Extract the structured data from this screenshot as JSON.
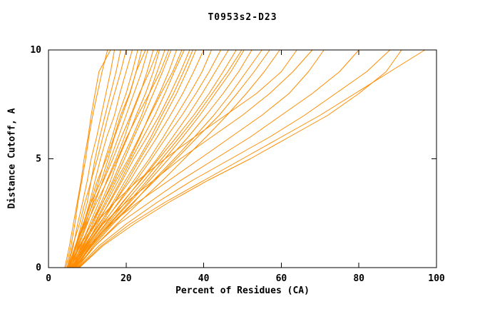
{
  "chart_data": {
    "type": "line",
    "title": "T0953s2-D23",
    "xlabel": "Percent of Residues (CA)",
    "ylabel": "Distance Cutoff, A",
    "xlim": [
      0,
      100
    ],
    "ylim": [
      0,
      10
    ],
    "xticks": [
      0,
      20,
      40,
      60,
      80,
      100
    ],
    "yticks": [
      0,
      5,
      10
    ],
    "grid": false,
    "legend": "none",
    "line_color": "#ff8c00",
    "frame_color": "#000000",
    "y_values": [
      0,
      1,
      2,
      3,
      4,
      5,
      6,
      7,
      8,
      9,
      10
    ],
    "series_x_at_y": [
      [
        4.5,
        5.8,
        6.8,
        7.6,
        8.6,
        9.6,
        10.4,
        11.4,
        12.6,
        13.8,
        15.2
      ],
      [
        5.0,
        6.4,
        7.5,
        8.8,
        10.0,
        11.0,
        12.4,
        13.6,
        14.8,
        16.0,
        17.0
      ],
      [
        5.5,
        7.0,
        8.5,
        10.0,
        11.0,
        12.0,
        13.2,
        14.6,
        16.0,
        17.4,
        18.6
      ],
      [
        4.8,
        6.2,
        8.0,
        9.4,
        11.0,
        12.6,
        14.0,
        15.4,
        17.0,
        18.6,
        20.0
      ],
      [
        5.2,
        7.0,
        9.0,
        10.6,
        12.0,
        13.4,
        15.0,
        17.0,
        18.4,
        20.0,
        21.6
      ],
      [
        6.0,
        7.6,
        9.6,
        11.4,
        13.0,
        14.6,
        16.4,
        18.0,
        20.0,
        21.6,
        23.0
      ],
      [
        5.0,
        7.2,
        9.2,
        11.0,
        13.6,
        15.4,
        17.0,
        19.0,
        21.0,
        22.6,
        24.0
      ],
      [
        5.5,
        7.8,
        10.0,
        12.0,
        14.0,
        16.0,
        18.0,
        20.0,
        22.0,
        24.0,
        25.6
      ],
      [
        6.2,
        8.4,
        10.6,
        13.0,
        15.0,
        17.4,
        19.6,
        21.4,
        23.6,
        25.4,
        27.0
      ],
      [
        5.8,
        8.0,
        11.0,
        13.6,
        16.0,
        18.0,
        20.4,
        22.6,
        25.0,
        27.0,
        28.6
      ],
      [
        6.5,
        9.0,
        11.4,
        14.0,
        16.6,
        19.0,
        21.6,
        24.0,
        26.0,
        28.0,
        30.0
      ],
      [
        5.4,
        8.2,
        11.0,
        14.0,
        17.0,
        19.6,
        22.0,
        24.6,
        27.0,
        29.4,
        31.6
      ],
      [
        6.0,
        9.0,
        12.0,
        15.0,
        18.0,
        21.0,
        23.6,
        26.0,
        28.6,
        31.0,
        33.0
      ],
      [
        6.8,
        9.6,
        12.6,
        15.6,
        18.6,
        21.4,
        24.4,
        27.4,
        30.0,
        32.4,
        35.0
      ],
      [
        5.6,
        8.8,
        12.2,
        15.8,
        19.0,
        22.0,
        25.4,
        28.6,
        31.4,
        34.0,
        36.4
      ],
      [
        6.4,
        9.8,
        13.6,
        17.0,
        20.4,
        23.6,
        27.0,
        30.0,
        33.0,
        35.6,
        38.0
      ],
      [
        5.9,
        9.2,
        13.0,
        17.0,
        21.0,
        24.4,
        28.0,
        31.4,
        34.6,
        37.4,
        40.0
      ],
      [
        6.6,
        10.0,
        14.0,
        18.0,
        22.0,
        26.0,
        29.6,
        33.0,
        36.4,
        39.6,
        42.0
      ],
      [
        6.1,
        9.6,
        13.8,
        18.2,
        22.6,
        26.6,
        30.4,
        34.4,
        38.0,
        41.4,
        44.4
      ],
      [
        7.0,
        10.6,
        14.8,
        19.2,
        23.6,
        28.0,
        32.0,
        36.0,
        39.6,
        43.0,
        46.4
      ],
      [
        6.3,
        10.2,
        14.6,
        19.0,
        23.8,
        28.4,
        33.0,
        37.4,
        41.4,
        45.0,
        48.4
      ],
      [
        7.2,
        11.0,
        15.6,
        20.6,
        25.4,
        30.0,
        34.6,
        39.0,
        43.0,
        47.0,
        50.4
      ],
      [
        6.7,
        10.8,
        15.8,
        21.0,
        26.0,
        31.0,
        36.0,
        40.6,
        45.0,
        49.0,
        52.4
      ],
      [
        7.5,
        11.6,
        16.6,
        22.0,
        27.0,
        32.4,
        37.6,
        42.6,
        47.0,
        51.0,
        55.0
      ],
      [
        6.9,
        11.2,
        16.2,
        21.8,
        27.4,
        33.0,
        38.4,
        44.0,
        48.6,
        53.0,
        57.0
      ],
      [
        7.4,
        12.0,
        17.6,
        23.4,
        29.4,
        35.0,
        40.6,
        46.0,
        51.0,
        55.6,
        59.6
      ],
      [
        5.0,
        8.0,
        12.0,
        17.0,
        23.0,
        30.0,
        37.6,
        45.6,
        53.6,
        60.0,
        64.0
      ],
      [
        6.0,
        9.6,
        14.0,
        20.0,
        27.0,
        34.0,
        42.0,
        50.0,
        57.0,
        63.0,
        68.0
      ],
      [
        6.5,
        10.4,
        16.0,
        23.0,
        31.0,
        39.0,
        47.0,
        55.0,
        62.0,
        67.0,
        71.0
      ],
      [
        7.0,
        12.0,
        18.0,
        26.0,
        34.0,
        43.0,
        52.0,
        60.0,
        68.0,
        75.0,
        80.0
      ],
      [
        7.6,
        13.0,
        20.0,
        28.0,
        37.0,
        47.0,
        57.0,
        66.0,
        74.0,
        82.0,
        88.0
      ],
      [
        8.0,
        14.0,
        22.0,
        31.0,
        41.0,
        52.0,
        62.0,
        72.0,
        80.0,
        87.0,
        91.0
      ],
      [
        7.8,
        13.6,
        21.0,
        30.0,
        40.0,
        50.0,
        60.0,
        70.0,
        79.0,
        88.0,
        97.0
      ],
      [
        4.2,
        5.4,
        6.4,
        7.4,
        8.4,
        9.2,
        10.2,
        11.0,
        12.0,
        13.0,
        16.0
      ],
      [
        5.1,
        6.9,
        8.9,
        10.9,
        12.6,
        14.9,
        16.9,
        18.6,
        20.9,
        22.6,
        25.0
      ],
      [
        5.3,
        7.4,
        9.8,
        12.4,
        15.2,
        17.8,
        20.2,
        23.0,
        26.0,
        28.8,
        31.0
      ],
      [
        6.2,
        9.4,
        13.2,
        16.6,
        19.8,
        23.2,
        26.4,
        29.2,
        32.2,
        34.8,
        37.2
      ],
      [
        5.7,
        8.6,
        11.8,
        14.6,
        17.4,
        20.6,
        23.4,
        26.2,
        29.0,
        32.0,
        34.4
      ],
      [
        4.9,
        7.1,
        9.4,
        11.6,
        14.2,
        16.6,
        18.8,
        21.2,
        23.4,
        26.0,
        28.2
      ],
      [
        6.9,
        10.9,
        15.2,
        19.8,
        24.6,
        29.2,
        33.8,
        38.2,
        42.2,
        46.2,
        49.8
      ]
    ]
  }
}
